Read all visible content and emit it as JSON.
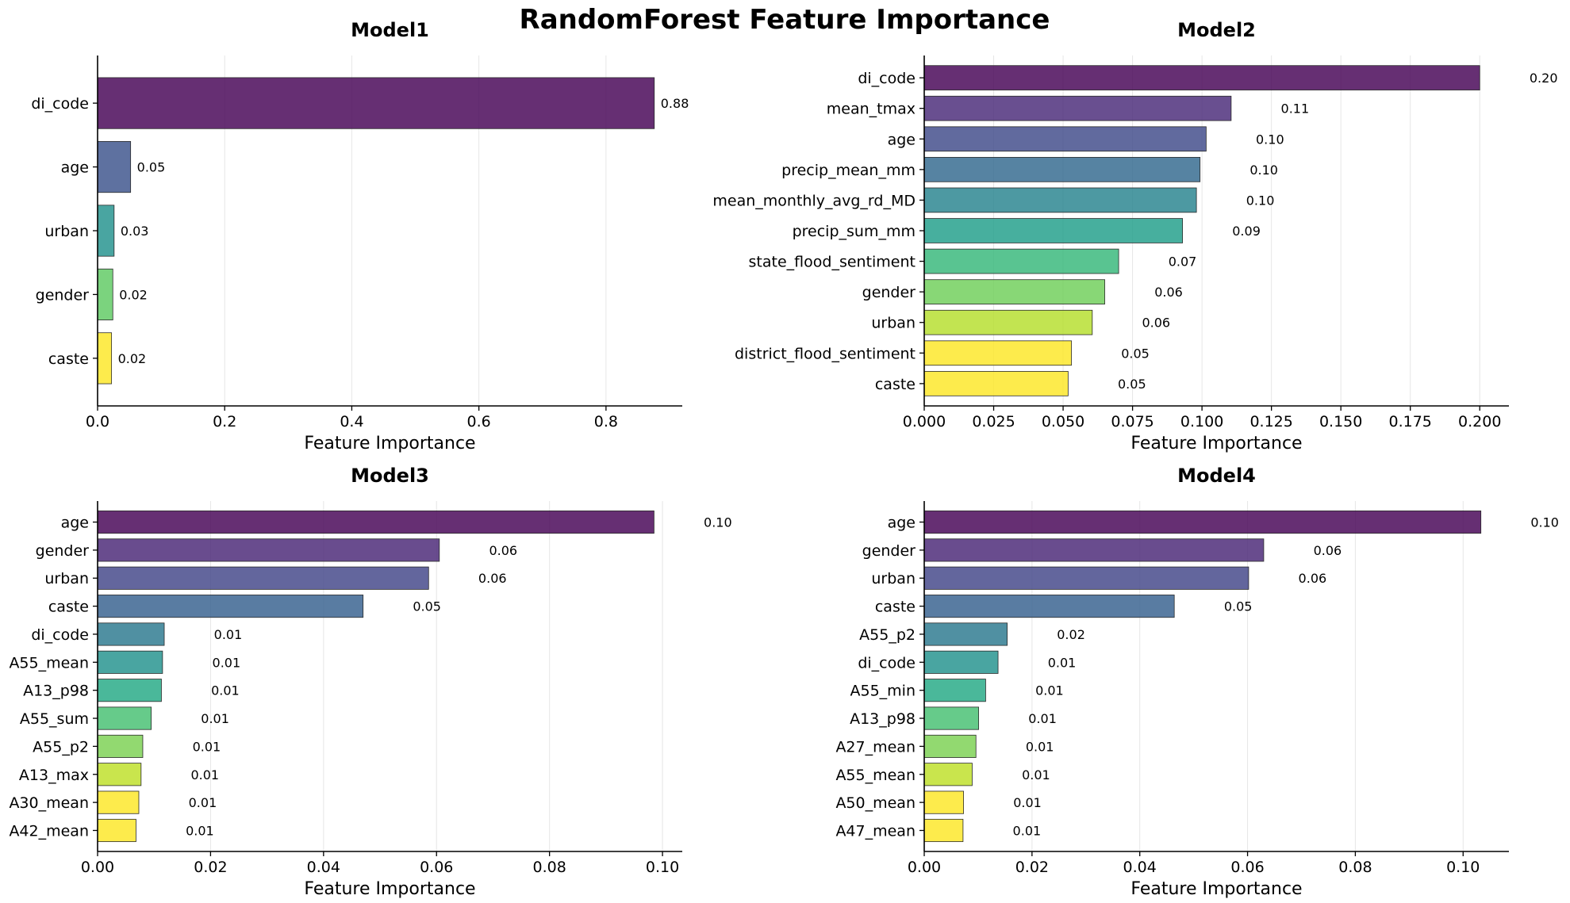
{
  "figure_title": "RandomForest Feature Importance",
  "chart_data": [
    {
      "type": "bar",
      "orientation": "horizontal",
      "title": "Model1",
      "xlabel": "Feature Importance",
      "ylabel": "",
      "grid": "x",
      "xlim": [
        0,
        0.92
      ],
      "xticks": [
        "0.0",
        "0.2",
        "0.4",
        "0.6",
        "0.8"
      ],
      "xtick_values": [
        0,
        0.2,
        0.4,
        0.6,
        0.8
      ],
      "categories": [
        "di_code",
        "age",
        "urban",
        "gender",
        "caste"
      ],
      "values": [
        0.876,
        0.052,
        0.026,
        0.024,
        0.022
      ],
      "data_labels": [
        "0.88",
        "0.05",
        "0.03",
        "0.02",
        "0.02"
      ],
      "colors": [
        "#440154",
        "#3b528b",
        "#21918c",
        "#5ec962",
        "#fde725"
      ]
    },
    {
      "type": "bar",
      "orientation": "horizontal",
      "title": "Model2",
      "xlabel": "Feature Importance",
      "ylabel": "",
      "grid": "x",
      "xlim": [
        0,
        0.2105
      ],
      "xticks": [
        "0.000",
        "0.025",
        "0.050",
        "0.075",
        "0.100",
        "0.125",
        "0.150",
        "0.175",
        "0.200"
      ],
      "xtick_values": [
        0,
        0.025,
        0.05,
        0.075,
        0.1,
        0.125,
        0.15,
        0.175,
        0.2
      ],
      "categories": [
        "di_code",
        "mean_tmax",
        "age",
        "precip_mean_mm",
        "mean_monthly_avg_rd_MD",
        "precip_sum_mm",
        "state_flood_sentiment",
        "gender",
        "urban",
        "district_flood_sentiment",
        "caste"
      ],
      "values": [
        0.2,
        0.1105,
        0.1015,
        0.0993,
        0.098,
        0.093,
        0.07,
        0.065,
        0.0605,
        0.053,
        0.0518
      ],
      "data_labels": [
        "0.20",
        "0.11",
        "0.10",
        "0.10",
        "0.10",
        "0.09",
        "0.07",
        "0.06",
        "0.06",
        "0.05",
        "0.05"
      ],
      "colors": [
        "#440154",
        "#482878",
        "#3e4989",
        "#31688e",
        "#26828e",
        "#1f9e89",
        "#35b779",
        "#6ece58",
        "#b5de2b",
        "#fde725",
        "#fde725"
      ]
    },
    {
      "type": "bar",
      "orientation": "horizontal",
      "title": "Model3",
      "xlabel": "Feature Importance",
      "ylabel": "",
      "grid": "x",
      "xlim": [
        0,
        0.1035
      ],
      "xticks": [
        "0.00",
        "0.02",
        "0.04",
        "0.06",
        "0.08",
        "0.10"
      ],
      "xtick_values": [
        0,
        0.02,
        0.04,
        0.06,
        0.08,
        0.1
      ],
      "categories": [
        "age",
        "gender",
        "urban",
        "caste",
        "di_code",
        "A55_mean",
        "A13_p98",
        "A55_sum",
        "A55_p2",
        "A13_max",
        "A30_mean",
        "A42_mean"
      ],
      "values": [
        0.0985,
        0.0605,
        0.0586,
        0.047,
        0.0118,
        0.0115,
        0.0113,
        0.0095,
        0.008,
        0.0077,
        0.0073,
        0.0068
      ],
      "data_labels": [
        "0.10",
        "0.06",
        "0.06",
        "0.05",
        "0.01",
        "0.01",
        "0.01",
        "0.01",
        "0.01",
        "0.01",
        "0.01",
        "0.01"
      ],
      "colors": [
        "#440154",
        "#482475",
        "#414487",
        "#355f8d",
        "#2a788e",
        "#21918c",
        "#22a884",
        "#44bf70",
        "#7ad151",
        "#bddf26",
        "#fde725",
        "#fde725"
      ]
    },
    {
      "type": "bar",
      "orientation": "horizontal",
      "title": "Model4",
      "xlabel": "Feature Importance",
      "ylabel": "",
      "grid": "x",
      "xlim": [
        0,
        0.1085
      ],
      "xticks": [
        "0.00",
        "0.02",
        "0.04",
        "0.06",
        "0.08",
        "0.10"
      ],
      "xtick_values": [
        0,
        0.02,
        0.04,
        0.06,
        0.08,
        0.1
      ],
      "categories": [
        "age",
        "gender",
        "urban",
        "caste",
        "A55_p2",
        "di_code",
        "A55_min",
        "A13_p98",
        "A27_mean",
        "A55_mean",
        "A50_mean",
        "A47_mean"
      ],
      "values": [
        0.1033,
        0.063,
        0.0602,
        0.0464,
        0.0154,
        0.0137,
        0.0114,
        0.0101,
        0.0096,
        0.0089,
        0.0073,
        0.0072
      ],
      "data_labels": [
        "0.10",
        "0.06",
        "0.06",
        "0.05",
        "0.02",
        "0.01",
        "0.01",
        "0.01",
        "0.01",
        "0.01",
        "0.01",
        "0.01"
      ],
      "colors": [
        "#440154",
        "#482475",
        "#414487",
        "#355f8d",
        "#2a788e",
        "#21918c",
        "#22a884",
        "#44bf70",
        "#7ad151",
        "#bddf26",
        "#fde725",
        "#fde725"
      ]
    }
  ]
}
